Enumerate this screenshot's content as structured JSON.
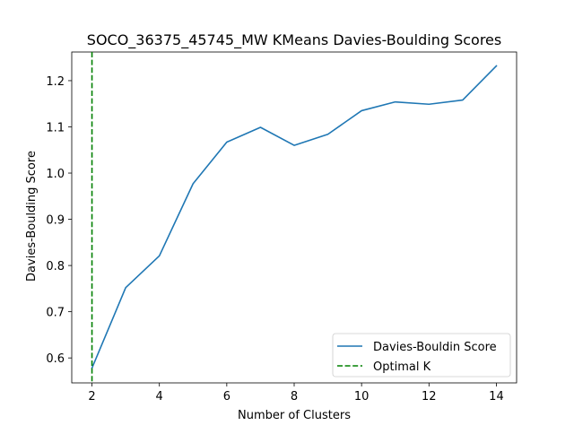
{
  "chart_data": {
    "type": "line",
    "title": "SOCO_36375_45745_MW KMeans Davies-Boulding Scores",
    "xlabel": "Number of Clusters",
    "ylabel": "Davies-Boulding Score",
    "xlim": [
      1.4,
      14.6
    ],
    "ylim": [
      0.546,
      1.262
    ],
    "xticks": [
      2,
      4,
      6,
      8,
      10,
      12,
      14
    ],
    "yticks": [
      0.6,
      0.7,
      0.8,
      0.9,
      1.0,
      1.1,
      1.2
    ],
    "ytick_labels": [
      "0.6",
      "0.7",
      "0.8",
      "0.9",
      "1.0",
      "1.1",
      "1.2"
    ],
    "grid": false,
    "legend_position": "lower-right",
    "series": [
      {
        "name": "Davies-Bouldin Score",
        "style": "solid",
        "color": "#1f77b4",
        "x": [
          2,
          3,
          4,
          5,
          6,
          7,
          8,
          9,
          10,
          11,
          12,
          13,
          14
        ],
        "y": [
          0.578,
          0.752,
          0.821,
          0.977,
          1.067,
          1.099,
          1.06,
          1.084,
          1.135,
          1.154,
          1.149,
          1.158,
          1.232
        ]
      }
    ],
    "vlines": [
      {
        "name": "Optimal K",
        "x": 2,
        "style": "dashed",
        "color": "#008000"
      }
    ]
  }
}
